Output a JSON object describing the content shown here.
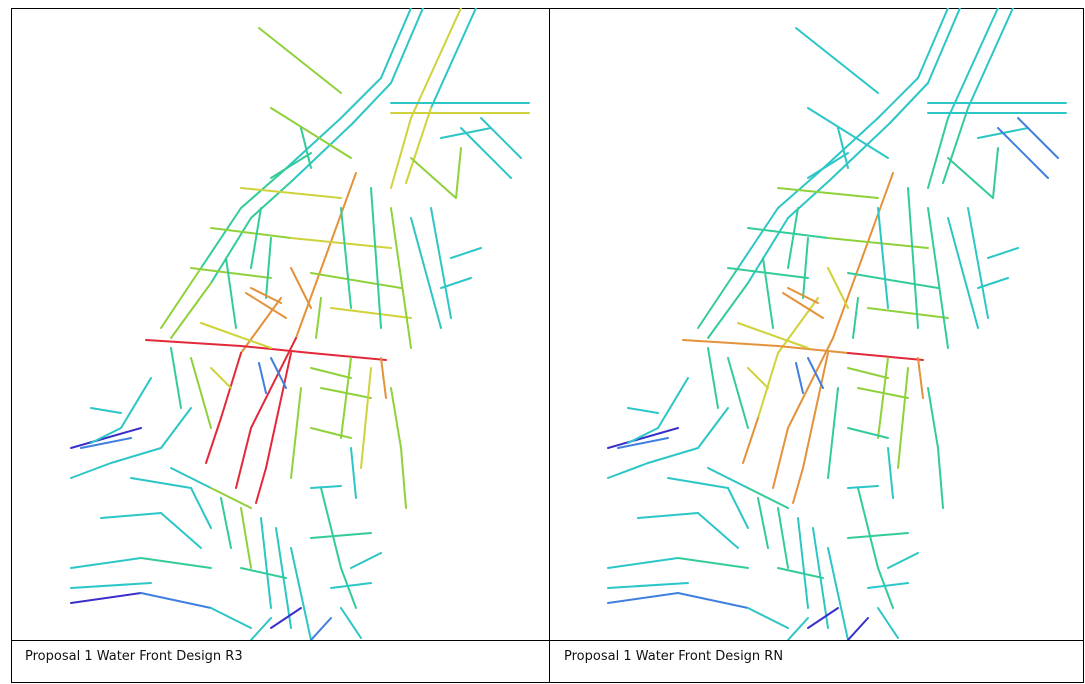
{
  "panels": [
    {
      "caption": "Proposal 1 Water Front Design R3",
      "palette": "r3"
    },
    {
      "caption": "Proposal 1 Water Front Design RN",
      "palette": "rn"
    }
  ],
  "colors": {
    "purple": "#3a2fc8",
    "blue": "#3f7fe0",
    "teal": "#2cc6c6",
    "green": "#33cc99",
    "lime": "#8fd13a",
    "yellow": "#cfd23a",
    "orange": "#e3923a",
    "red": "#e3283a"
  }
}
